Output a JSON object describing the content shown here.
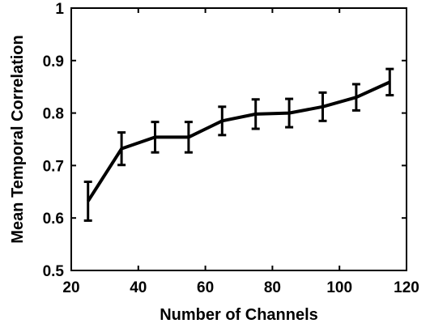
{
  "chart_data": {
    "type": "line",
    "title": "",
    "xlabel": "Number of Channels",
    "ylabel": "Mean Temporal Correlation",
    "xlim": [
      20,
      120
    ],
    "ylim": [
      0.5,
      1
    ],
    "xticks": [
      20,
      40,
      60,
      80,
      100,
      120
    ],
    "yticks": [
      0.5,
      0.6,
      0.7,
      0.8,
      0.9,
      1
    ],
    "xtick_labels": [
      "20",
      "40",
      "60",
      "80",
      "100",
      "120"
    ],
    "ytick_labels": [
      "0.5",
      "0.6",
      "0.7",
      "0.8",
      "0.9",
      "1"
    ],
    "grid": false,
    "series": [
      {
        "x": [
          25,
          35,
          45,
          55,
          65,
          75,
          85,
          95,
          105,
          115
        ],
        "y": [
          0.632,
          0.732,
          0.754,
          0.754,
          0.785,
          0.798,
          0.8,
          0.812,
          0.83,
          0.859
        ],
        "err": [
          0.037,
          0.031,
          0.029,
          0.029,
          0.027,
          0.028,
          0.027,
          0.027,
          0.025,
          0.025
        ]
      }
    ],
    "colors": {
      "line": "#000000",
      "axis": "#000000",
      "background": "#ffffff"
    }
  }
}
